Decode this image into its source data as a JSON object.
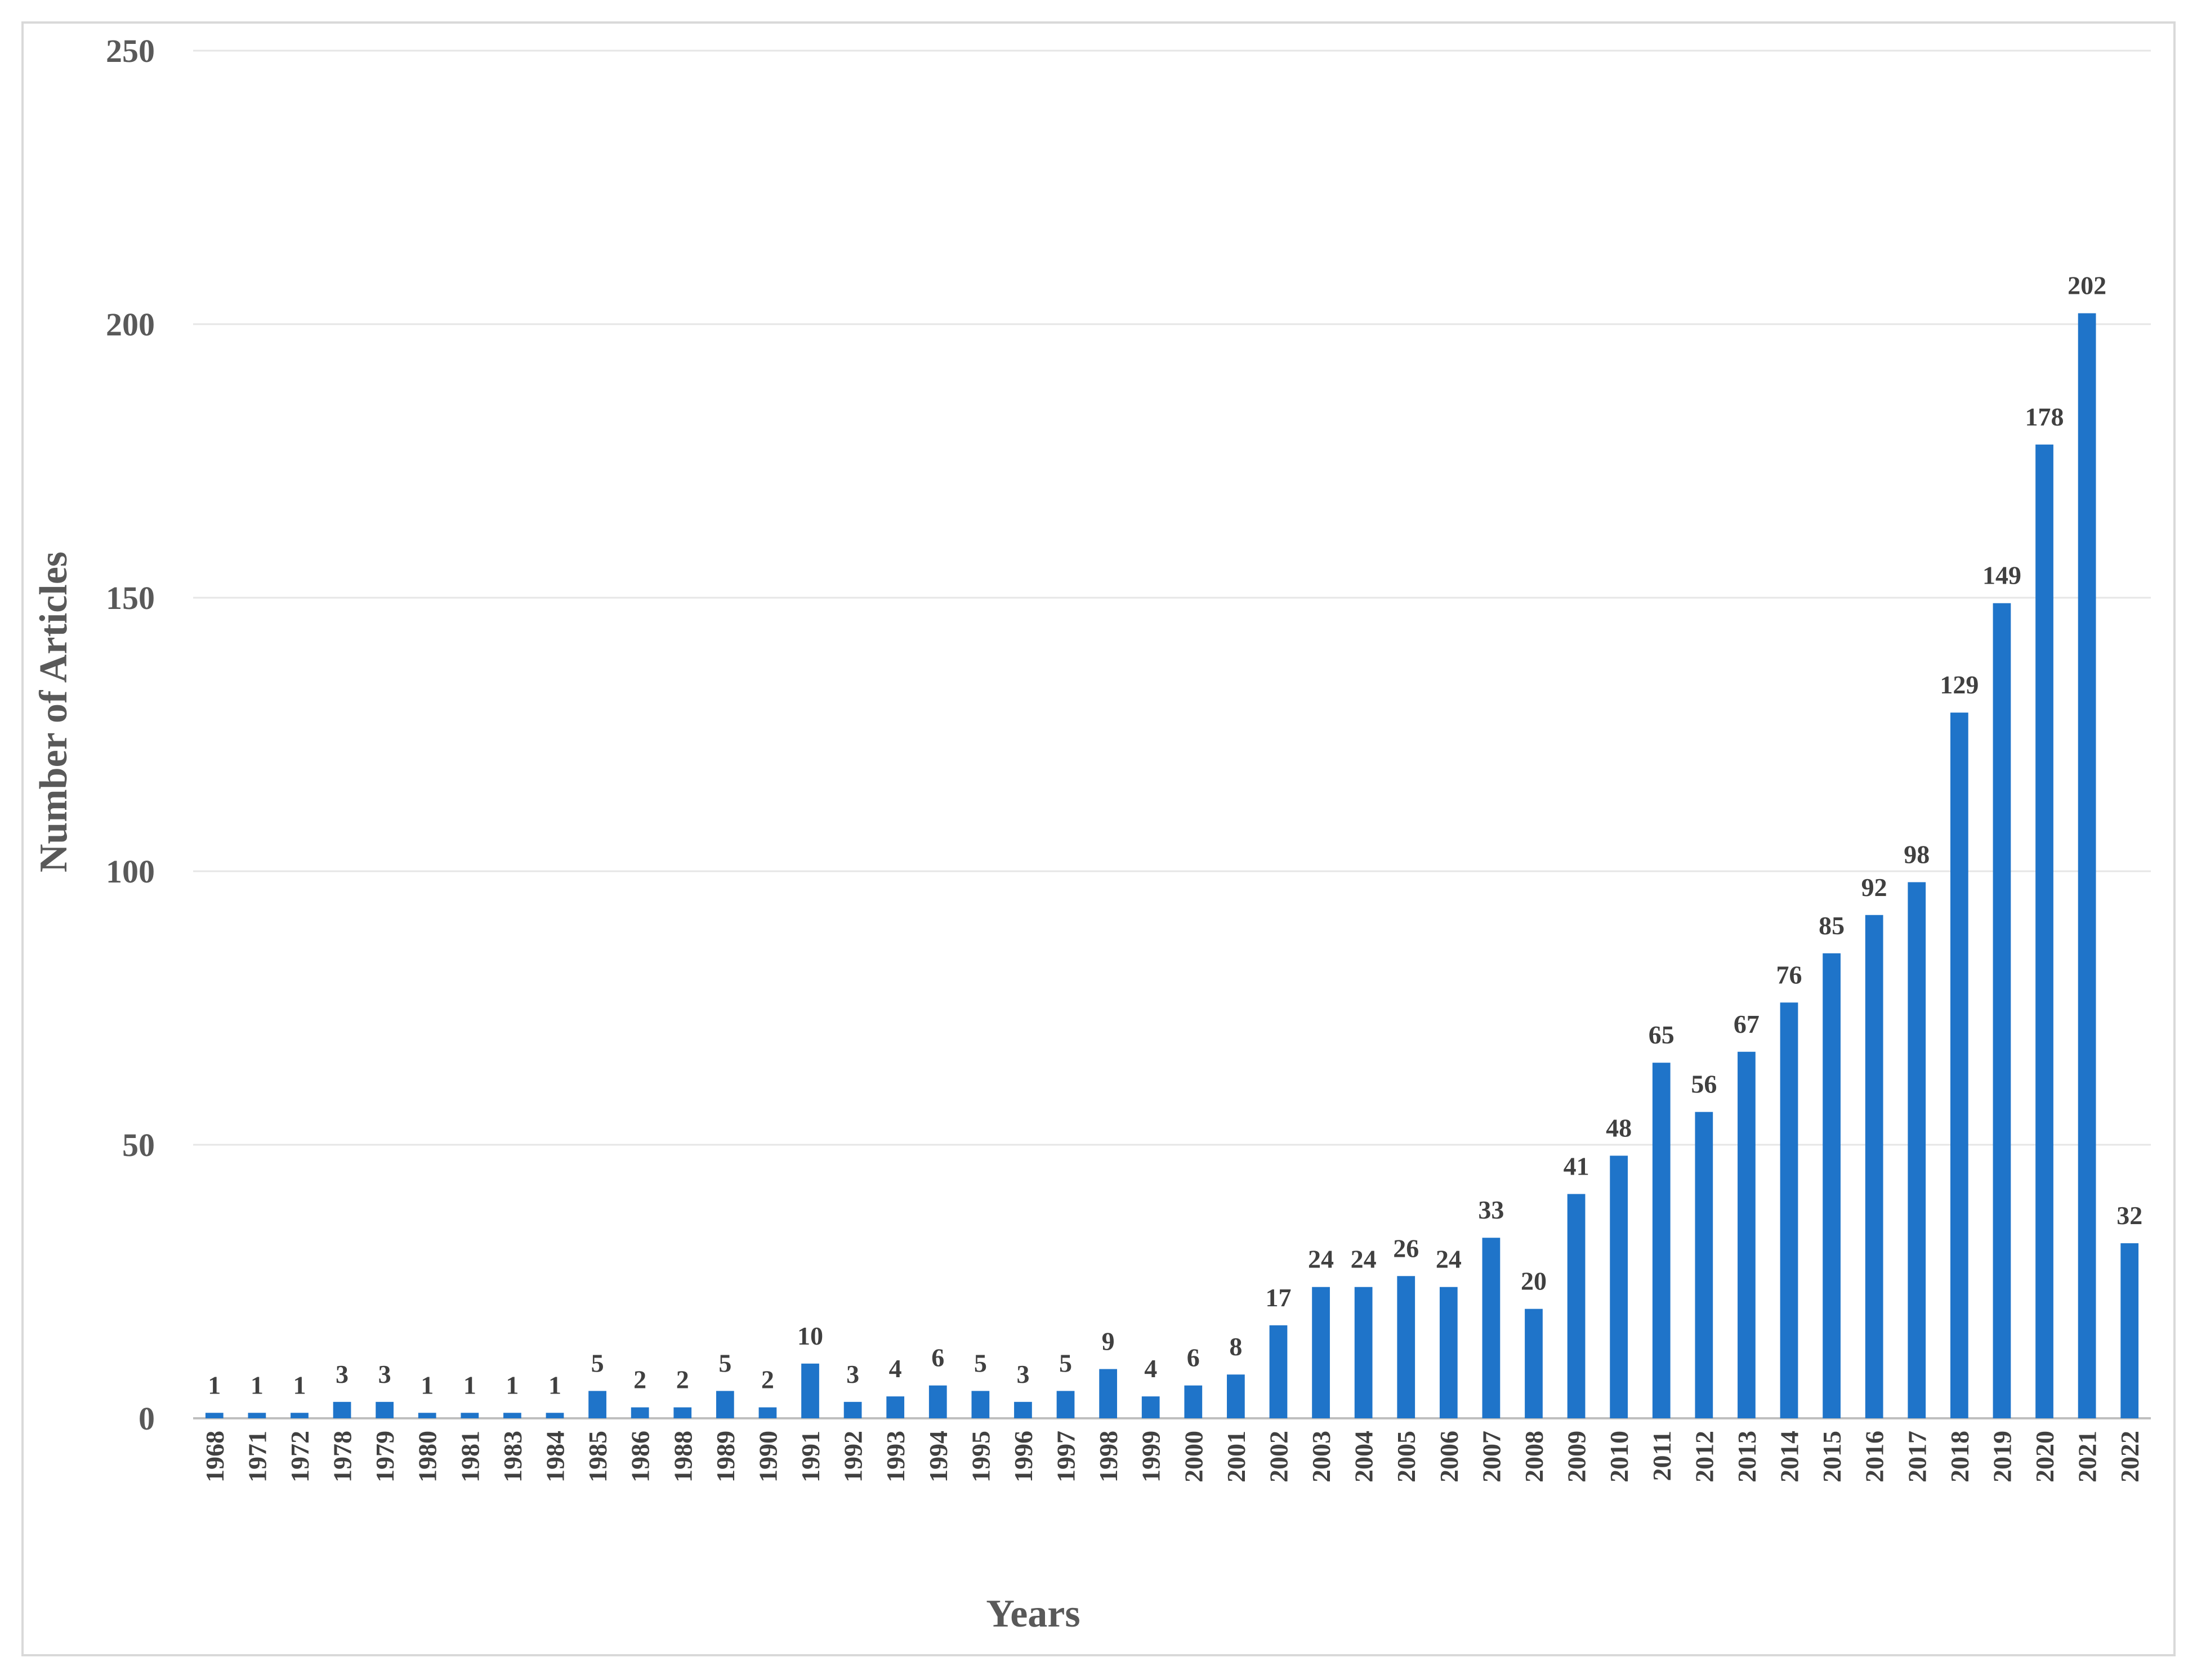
{
  "chart_data": {
    "type": "bar",
    "title": "",
    "xlabel": "Years",
    "ylabel": "Number of Articles",
    "ylim": [
      0,
      250
    ],
    "yticks": [
      0,
      50,
      100,
      150,
      200,
      250
    ],
    "grid": true,
    "legend": "none",
    "bar_color": "#1f74c9",
    "categories": [
      "1968",
      "1971",
      "1972",
      "1978",
      "1979",
      "1980",
      "1981",
      "1983",
      "1984",
      "1985",
      "1986",
      "1988",
      "1989",
      "1990",
      "1991",
      "1992",
      "1993",
      "1994",
      "1995",
      "1996",
      "1997",
      "1998",
      "1999",
      "2000",
      "2001",
      "2002",
      "2003",
      "2004",
      "2005",
      "2006",
      "2007",
      "2008",
      "2009",
      "2010",
      "2011",
      "2012",
      "2013",
      "2014",
      "2015",
      "2016",
      "2017",
      "2018",
      "2019",
      "2020",
      "2021",
      "2022"
    ],
    "values": [
      1,
      1,
      1,
      3,
      3,
      1,
      1,
      1,
      1,
      5,
      2,
      2,
      5,
      2,
      10,
      3,
      4,
      6,
      5,
      3,
      5,
      9,
      4,
      6,
      8,
      17,
      24,
      24,
      26,
      24,
      33,
      20,
      41,
      48,
      65,
      56,
      67,
      76,
      85,
      92,
      98,
      129,
      149,
      178,
      202,
      32
    ]
  }
}
